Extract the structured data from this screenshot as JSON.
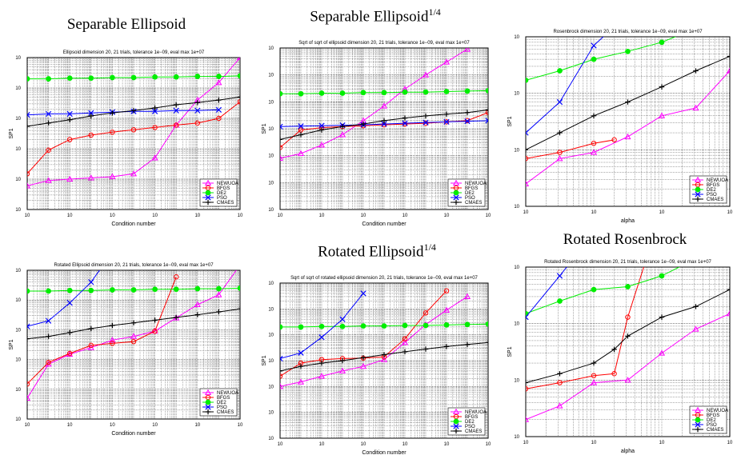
{
  "figure_titles": {
    "p1": {
      "main": "Separable Ellipsoid",
      "sup": ""
    },
    "p2": {
      "main": "Separable Ellipsoid",
      "sup": "1/4"
    },
    "p5": {
      "main": "Rotated Ellipsoid",
      "sup": "1/4"
    },
    "p6": {
      "main": "Rotated Rosenbrock",
      "sup": ""
    }
  },
  "tick_base": "10",
  "colors": {
    "NEWUOA": "#ff00ff",
    "BFGS": "#ff0000",
    "DE2": "#00ee00",
    "PSO": "#0000ff",
    "CMAES": "#000000"
  },
  "chart_data": [
    {
      "type": "line",
      "title": "Ellipsoid dimension 20, 21 trials, tolerance 1e−09, eval max 1e+07",
      "xlabel": "Condition number",
      "ylabel": "SP1",
      "x_scale": "log",
      "y_scale": "log",
      "xlim_exp": [
        0,
        10
      ],
      "ylim_exp": [
        2,
        7
      ],
      "x_tick_exps": [
        0,
        2,
        4,
        6,
        8,
        10
      ],
      "y_tick_exps": [
        2,
        3,
        4,
        5,
        6,
        7
      ],
      "grid": true,
      "legend": "lower-right",
      "series": [
        {
          "name": "NEWUOA",
          "marker": "triangle",
          "x": [
            1,
            10,
            100,
            1000,
            10000,
            100000,
            1000000,
            10000000,
            100000000,
            1000000000,
            10000000000
          ],
          "y": [
            600,
            900,
            1000,
            1100,
            1200,
            1500,
            5000,
            60000,
            400000,
            1500000,
            10000000
          ]
        },
        {
          "name": "BFGS",
          "marker": "circle",
          "x": [
            1,
            10,
            100,
            1000,
            10000,
            100000,
            1000000,
            10000000,
            100000000,
            1000000000,
            10000000000
          ],
          "y": [
            1500,
            9000,
            20000,
            28000,
            35000,
            42000,
            50000,
            60000,
            70000,
            100000,
            350000
          ]
        },
        {
          "name": "DE2",
          "marker": "dot",
          "x": [
            1,
            10,
            100,
            1000,
            10000,
            100000,
            1000000,
            10000000,
            100000000,
            1000000000,
            10000000000
          ],
          "y": [
            2000000,
            2000000,
            2100000,
            2100000,
            2200000,
            2200000,
            2300000,
            2300000,
            2400000,
            2400000,
            2500000
          ]
        },
        {
          "name": "PSO",
          "marker": "x",
          "x": [
            1,
            10,
            100,
            1000,
            10000,
            100000,
            1000000,
            10000000,
            100000000,
            1000000000
          ],
          "y": [
            130000,
            140000,
            140000,
            150000,
            160000,
            170000,
            170000,
            180000,
            180000,
            190000
          ]
        },
        {
          "name": "CMAES",
          "marker": "plus",
          "x": [
            1,
            10,
            100,
            1000,
            10000,
            100000,
            1000000,
            10000000,
            100000000,
            1000000000,
            10000000000
          ],
          "y": [
            55000,
            70000,
            90000,
            120000,
            150000,
            180000,
            220000,
            280000,
            330000,
            400000,
            500000
          ]
        }
      ]
    },
    {
      "type": "line",
      "title": "Sqrt of sqrt of ellipsoid dimension 20, 21 trials, tolerance 1e−09, eval max 1e+07",
      "xlabel": "Condition number",
      "ylabel": "SP1",
      "x_scale": "log",
      "y_scale": "log",
      "xlim_exp": [
        0,
        10
      ],
      "ylim_exp": [
        1,
        7
      ],
      "x_tick_exps": [
        0,
        2,
        4,
        6,
        8,
        10
      ],
      "y_tick_exps": [
        1,
        2,
        3,
        4,
        5,
        6,
        7
      ],
      "grid": true,
      "legend": "lower-right",
      "series": [
        {
          "name": "NEWUOA",
          "marker": "triangle",
          "x": [
            1,
            10,
            100,
            1000,
            10000,
            100000,
            1000000,
            10000000,
            100000000,
            1000000000
          ],
          "y": [
            800,
            1200,
            2500,
            6000,
            20000,
            70000,
            300000,
            1000000,
            3000000,
            9000000
          ]
        },
        {
          "name": "BFGS",
          "marker": "circle",
          "x": [
            1,
            10,
            100,
            1000,
            10000,
            100000,
            1000000,
            10000000,
            100000000,
            1000000000,
            10000000000
          ],
          "y": [
            2000,
            9000,
            11000,
            12000,
            13000,
            14000,
            15000,
            16000,
            18000,
            20000,
            40000
          ]
        },
        {
          "name": "DE2",
          "marker": "dot",
          "x": [
            1,
            10,
            100,
            1000,
            10000,
            100000,
            1000000,
            10000000,
            100000000,
            1000000000,
            10000000000
          ],
          "y": [
            200000,
            200000,
            210000,
            210000,
            220000,
            220000,
            230000,
            230000,
            240000,
            250000,
            260000
          ]
        },
        {
          "name": "PSO",
          "marker": "x",
          "x": [
            1,
            10,
            100,
            1000,
            10000,
            100000,
            1000000,
            10000000,
            100000000,
            1000000000,
            10000000000
          ],
          "y": [
            12000,
            12500,
            13000,
            13500,
            14000,
            15000,
            16000,
            17000,
            18000,
            19000,
            20000
          ]
        },
        {
          "name": "CMAES",
          "marker": "plus",
          "x": [
            1,
            10,
            100,
            1000,
            10000,
            100000,
            1000000,
            10000000,
            100000000,
            1000000000,
            10000000000
          ],
          "y": [
            4000,
            6000,
            9000,
            12000,
            15000,
            20000,
            25000,
            30000,
            35000,
            40000,
            50000
          ]
        }
      ]
    },
    {
      "type": "line",
      "title": "Rosenbrock dimension 20, 21 trials, tolerance 1e−09, eval max 1e+07",
      "xlabel": "alpha",
      "ylabel": "SP1",
      "x_scale": "log",
      "y_scale": "log",
      "xlim_exp": [
        0,
        3
      ],
      "ylim_exp": [
        4,
        7
      ],
      "x_tick_exps": [
        0,
        1,
        2,
        3
      ],
      "y_tick_exps": [
        4,
        5,
        6,
        7
      ],
      "grid": true,
      "legend": "lower-right",
      "series": [
        {
          "name": "NEWUOA",
          "marker": "triangle",
          "x": [
            1,
            3.16,
            10,
            31.6,
            100,
            316,
            1000,
            3160,
            10000
          ],
          "y": [
            25000,
            70000,
            90000,
            170000,
            400000,
            550000,
            2500000,
            8000000,
            40000000
          ]
        },
        {
          "name": "BFGS",
          "marker": "circle",
          "x": [
            1,
            3.16,
            10,
            20
          ],
          "y": [
            70000,
            90000,
            130000,
            150000
          ]
        },
        {
          "name": "DE2",
          "marker": "dot",
          "x": [
            1,
            3.16,
            10,
            31.6,
            100,
            316,
            1000,
            3160,
            10000
          ],
          "y": [
            1700000,
            2500000,
            4000000,
            5500000,
            8000000,
            14000000,
            25000000,
            50000000,
            95000000
          ]
        },
        {
          "name": "PSO",
          "marker": "x",
          "x": [
            1,
            3.16,
            10,
            31.6,
            100
          ],
          "y": [
            200000,
            700000,
            7000000,
            25000000,
            60000000
          ]
        },
        {
          "name": "CMAES",
          "marker": "plus",
          "x": [
            1,
            3.16,
            10,
            31.6,
            100,
            316,
            1000,
            3160,
            10000
          ],
          "y": [
            100000,
            200000,
            400000,
            700000,
            1300000,
            2500000,
            4500000,
            8000000,
            22000000
          ]
        }
      ]
    },
    {
      "type": "line",
      "title": "Rotated Ellipsoid dimension 20, 21 trials, tolerance 1e−09, eval max 1e+07",
      "xlabel": "Condition number",
      "ylabel": "SP1",
      "x_scale": "log",
      "y_scale": "log",
      "xlim_exp": [
        0,
        10
      ],
      "ylim_exp": [
        2,
        7
      ],
      "x_tick_exps": [
        0,
        2,
        4,
        6,
        8,
        10
      ],
      "y_tick_exps": [
        2,
        3,
        4,
        5,
        6,
        7
      ],
      "grid": true,
      "legend": "lower-right",
      "series": [
        {
          "name": "NEWUOA",
          "marker": "triangle",
          "x": [
            1,
            10,
            100,
            1000,
            10000,
            100000,
            1000000,
            10000000,
            100000000,
            1000000000,
            10000000000
          ],
          "y": [
            500,
            7000,
            15000,
            25000,
            45000,
            60000,
            90000,
            250000,
            700000,
            1500000,
            15000000
          ]
        },
        {
          "name": "BFGS",
          "marker": "circle",
          "x": [
            1,
            10,
            100,
            1000,
            10000,
            100000,
            1000000,
            10000000
          ],
          "y": [
            1500,
            8000,
            16000,
            30000,
            35000,
            40000,
            90000,
            6000000
          ]
        },
        {
          "name": "DE2",
          "marker": "dot",
          "x": [
            1,
            10,
            100,
            1000,
            10000,
            100000,
            1000000,
            10000000,
            100000000,
            1000000000,
            10000000000
          ],
          "y": [
            2000000,
            2000000,
            2100000,
            2100000,
            2200000,
            2200000,
            2300000,
            2300000,
            2400000,
            2400000,
            2500000
          ]
        },
        {
          "name": "PSO",
          "marker": "x",
          "x": [
            1,
            10,
            100,
            1000,
            10000
          ],
          "y": [
            130000,
            200000,
            800000,
            4000000,
            40000000
          ]
        },
        {
          "name": "CMAES",
          "marker": "plus",
          "x": [
            1,
            10,
            100,
            1000,
            10000,
            100000,
            1000000,
            10000000,
            100000000,
            1000000000,
            10000000000
          ],
          "y": [
            50000,
            60000,
            80000,
            110000,
            140000,
            170000,
            210000,
            260000,
            320000,
            400000,
            500000
          ]
        }
      ]
    },
    {
      "type": "line",
      "title": "Sqrt of sqrt of rotated ellipsoid dimension 20, 21 trials, tolerance 1e−09, eval max 1e+07",
      "xlabel": "Condition number",
      "ylabel": "SP1",
      "x_scale": "log",
      "y_scale": "log",
      "xlim_exp": [
        0,
        10
      ],
      "ylim_exp": [
        1,
        7
      ],
      "x_tick_exps": [
        0,
        2,
        4,
        6,
        8,
        10
      ],
      "y_tick_exps": [
        1,
        2,
        3,
        4,
        5,
        6,
        7
      ],
      "grid": true,
      "legend": "lower-right",
      "series": [
        {
          "name": "NEWUOA",
          "marker": "triangle",
          "x": [
            1,
            10,
            100,
            1000,
            10000,
            100000,
            1000000,
            10000000,
            100000000,
            1000000000
          ],
          "y": [
            1000,
            1500,
            2500,
            4000,
            6000,
            11000,
            50000,
            250000,
            900000,
            3000000
          ]
        },
        {
          "name": "BFGS",
          "marker": "circle",
          "x": [
            1,
            10,
            100,
            1000,
            10000,
            100000,
            1000000,
            10000000,
            100000000
          ],
          "y": [
            2500,
            8000,
            11000,
            12000,
            12500,
            14000,
            70000,
            700000,
            5000000
          ]
        },
        {
          "name": "DE2",
          "marker": "dot",
          "x": [
            1,
            10,
            100,
            1000,
            10000,
            100000,
            1000000,
            10000000,
            100000000,
            1000000000,
            10000000000
          ],
          "y": [
            200000,
            200000,
            210000,
            210000,
            220000,
            220000,
            230000,
            230000,
            240000,
            250000,
            260000
          ]
        },
        {
          "name": "PSO",
          "marker": "x",
          "x": [
            1,
            10,
            100,
            1000,
            10000
          ],
          "y": [
            12000,
            20000,
            80000,
            400000,
            4000000
          ]
        },
        {
          "name": "CMAES",
          "marker": "plus",
          "x": [
            1,
            10,
            100,
            1000,
            10000,
            100000,
            1000000,
            10000000,
            100000000,
            1000000000,
            10000000000
          ],
          "y": [
            4000,
            6000,
            8000,
            10000,
            13000,
            17000,
            22000,
            28000,
            35000,
            42000,
            50000
          ]
        }
      ]
    },
    {
      "type": "line",
      "title": "Rotated Rosenbrock dimension 20, 21 trials, tolerance 1e−09, eval max 1e+07",
      "xlabel": "alpha",
      "ylabel": "SP1",
      "x_scale": "log",
      "y_scale": "log",
      "xlim_exp": [
        0,
        3
      ],
      "ylim_exp": [
        4,
        7
      ],
      "x_tick_exps": [
        0,
        1,
        2,
        3
      ],
      "y_tick_exps": [
        4,
        5,
        6,
        7
      ],
      "grid": true,
      "legend": "lower-right",
      "series": [
        {
          "name": "NEWUOA",
          "marker": "triangle",
          "x": [
            1,
            3.16,
            10,
            31.6,
            100,
            316,
            1000,
            3160,
            10000
          ],
          "y": [
            20000,
            35000,
            90000,
            100000,
            300000,
            800000,
            1500000,
            6000000,
            50000000
          ]
        },
        {
          "name": "BFGS",
          "marker": "circle",
          "x": [
            1,
            3.16,
            10,
            20,
            31.6,
            100
          ],
          "y": [
            70000,
            90000,
            120000,
            130000,
            1300000,
            100000000
          ]
        },
        {
          "name": "DE2",
          "marker": "dot",
          "x": [
            1,
            3.16,
            10,
            31.6,
            100,
            316,
            1000,
            3160,
            10000
          ],
          "y": [
            1500000,
            2500000,
            4000000,
            4500000,
            7000000,
            14000000,
            35000000,
            60000000,
            110000000
          ]
        },
        {
          "name": "PSO",
          "marker": "x",
          "x": [
            1,
            3.16,
            10,
            20
          ],
          "y": [
            1300000,
            7000000,
            40000000,
            100000000
          ]
        },
        {
          "name": "CMAES",
          "marker": "plus",
          "x": [
            1,
            3.16,
            10,
            20,
            31.6,
            100,
            316,
            1000,
            3160,
            10000
          ],
          "y": [
            90000,
            130000,
            200000,
            350000,
            600000,
            1300000,
            2000000,
            4000000,
            8000000,
            20000000
          ]
        }
      ]
    }
  ]
}
